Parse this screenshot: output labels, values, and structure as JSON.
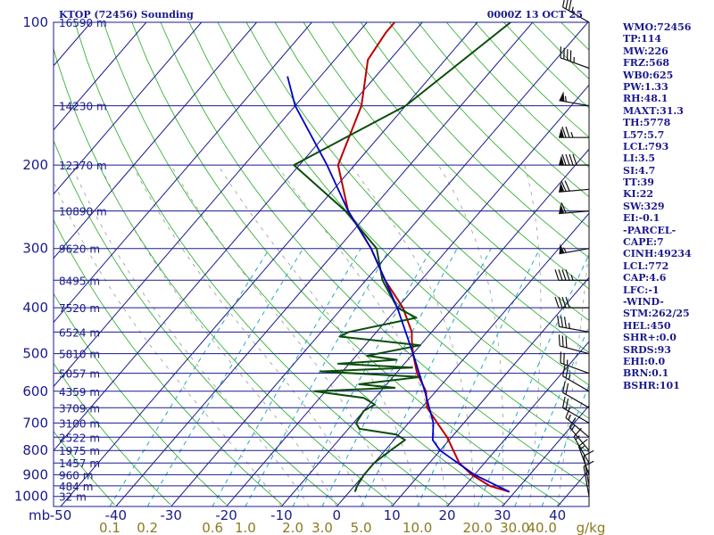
{
  "header": {
    "station": "KTOP (72456) Sounding",
    "time": "0000Z 13 OCT 25"
  },
  "colors": {
    "background": "#ffffff",
    "frame": "#1a1a8c",
    "isobar": "#1a1a8c",
    "isotherm": "#1a1a8c",
    "dry_adiabat": "#22aa22",
    "mixing_ratio": "#22aabb",
    "moist_adiabat": "#999999",
    "temperature": "#bb0000",
    "dewpoint": "#0b4d0b",
    "parcel": "#0000cc",
    "wind": "#111111",
    "label": "#1a1a8c",
    "mixing_label": "#8a7a20"
  },
  "icons": {
    "wind_barbs": "wind-barb-icon"
  },
  "chart_data": {
    "type": "line",
    "subtype": "skew-t log-p",
    "y_axis": {
      "label": "mb",
      "scale": "log",
      "range": [
        1050,
        100
      ],
      "ticks": [
        100,
        200,
        300,
        400,
        500,
        600,
        700,
        800,
        900,
        1000
      ]
    },
    "x_axis": {
      "range": [
        -50,
        45
      ],
      "ticks": [
        -50,
        -40,
        -30,
        -20,
        -10,
        0,
        10,
        20,
        30,
        40
      ]
    },
    "mixing_ratio": {
      "unit": "g/kg",
      "labels": [
        "0.1",
        "0.2",
        "0.6",
        "1.0",
        "2.0",
        "3.0",
        "5.0",
        "10.0",
        "20.0",
        "30.0",
        "40.0"
      ]
    },
    "height_labels": [
      {
        "p": 100,
        "text": "16590 m"
      },
      {
        "p": 150,
        "text": "14230 m"
      },
      {
        "p": 200,
        "text": "12370 m"
      },
      {
        "p": 250,
        "text": "10890 m"
      },
      {
        "p": 300,
        "text": "9620 m"
      },
      {
        "p": 350,
        "text": "8495 m"
      },
      {
        "p": 400,
        "text": "7520 m"
      },
      {
        "p": 450,
        "text": "6524 m"
      },
      {
        "p": 500,
        "text": "5810 m"
      },
      {
        "p": 550,
        "text": "5057 m"
      },
      {
        "p": 600,
        "text": "4359 m"
      },
      {
        "p": 650,
        "text": "3709 m"
      },
      {
        "p": 700,
        "text": "3100 m"
      },
      {
        "p": 750,
        "text": "2522 m"
      },
      {
        "p": 800,
        "text": "1975 m"
      },
      {
        "p": 850,
        "text": "1457 m"
      },
      {
        "p": 900,
        "text": "960 m"
      },
      {
        "p": 950,
        "text": "484 m"
      },
      {
        "p": 1000,
        "text": "32 m"
      }
    ],
    "series": [
      {
        "key": "temperature",
        "points": [
          [
            978,
            29
          ],
          [
            950,
            24.5
          ],
          [
            900,
            19.5
          ],
          [
            850,
            15.4
          ],
          [
            800,
            12.4
          ],
          [
            750,
            9.2
          ],
          [
            700,
            5.2
          ],
          [
            650,
            1.0
          ],
          [
            600,
            -1.8
          ],
          [
            550,
            -6.2
          ],
          [
            500,
            -10
          ],
          [
            470,
            -12.2
          ],
          [
            450,
            -13.6
          ],
          [
            400,
            -19
          ],
          [
            350,
            -26.5
          ],
          [
            300,
            -34
          ],
          [
            250,
            -44
          ],
          [
            200,
            -53
          ],
          [
            150,
            -58
          ],
          [
            120,
            -64
          ],
          [
            105,
            -65
          ],
          [
            100,
            -65
          ]
        ]
      },
      {
        "key": "dewpoint",
        "points": [
          [
            978,
            1
          ],
          [
            950,
            0.5
          ],
          [
            900,
            0
          ],
          [
            850,
            0
          ],
          [
            800,
            1
          ],
          [
            760,
            2
          ],
          [
            740,
            -0.5
          ],
          [
            720,
            -8
          ],
          [
            700,
            -9.5
          ],
          [
            660,
            -10
          ],
          [
            640,
            -9
          ],
          [
            620,
            -12
          ],
          [
            600,
            -22
          ],
          [
            590,
            -8
          ],
          [
            580,
            -15
          ],
          [
            560,
            -5
          ],
          [
            545,
            -24
          ],
          [
            535,
            -8
          ],
          [
            525,
            -22
          ],
          [
            515,
            -12
          ],
          [
            505,
            -18
          ],
          [
            480,
            -10
          ],
          [
            460,
            -26
          ],
          [
            450,
            -25
          ],
          [
            420,
            -15
          ],
          [
            400,
            -20
          ],
          [
            350,
            -27
          ],
          [
            300,
            -33
          ],
          [
            250,
            -44.5
          ],
          [
            200,
            -61
          ],
          [
            150,
            -50
          ],
          [
            100,
            -44
          ]
        ]
      },
      {
        "key": "parcel",
        "points": [
          [
            978,
            29
          ],
          [
            900,
            20
          ],
          [
            800,
            10
          ],
          [
            760,
            7
          ],
          [
            700,
            4.5
          ],
          [
            600,
            -2
          ],
          [
            500,
            -10
          ],
          [
            400,
            -20
          ],
          [
            300,
            -34
          ],
          [
            250,
            -44
          ],
          [
            200,
            -55
          ],
          [
            150,
            -70
          ],
          [
            130,
            -76
          ]
        ]
      }
    ],
    "wind": {
      "unit": "kt",
      "barbs": [
        {
          "p": 100,
          "dir": 300,
          "spd": 35
        },
        {
          "p": 125,
          "dir": 290,
          "spd": 45
        },
        {
          "p": 150,
          "dir": 280,
          "spd": 55
        },
        {
          "p": 175,
          "dir": 270,
          "spd": 75
        },
        {
          "p": 200,
          "dir": 270,
          "spd": 90
        },
        {
          "p": 225,
          "dir": 265,
          "spd": 70
        },
        {
          "p": 250,
          "dir": 265,
          "spd": 60
        },
        {
          "p": 300,
          "dir": 260,
          "spd": 55
        },
        {
          "p": 350,
          "dir": 270,
          "spd": 45
        },
        {
          "p": 400,
          "dir": 270,
          "spd": 40
        },
        {
          "p": 450,
          "dir": 280,
          "spd": 35
        },
        {
          "p": 500,
          "dir": 285,
          "spd": 30
        },
        {
          "p": 550,
          "dir": 290,
          "spd": 25
        },
        {
          "p": 600,
          "dir": 300,
          "spd": 25
        },
        {
          "p": 650,
          "dir": 300,
          "spd": 20
        },
        {
          "p": 700,
          "dir": 300,
          "spd": 20
        },
        {
          "p": 750,
          "dir": 310,
          "spd": 15
        },
        {
          "p": 800,
          "dir": 320,
          "spd": 15
        },
        {
          "p": 850,
          "dir": 330,
          "spd": 15
        },
        {
          "p": 900,
          "dir": 340,
          "spd": 15
        },
        {
          "p": 950,
          "dir": 350,
          "spd": 10
        },
        {
          "p": 1000,
          "dir": 350,
          "spd": 10
        }
      ]
    }
  },
  "indices": [
    "WMO:72456",
    "TP:114",
    "MW:226",
    "FRZ:568",
    "WB0:625",
    "PW:1.33",
    "RH:48.1",
    "MAXT:31.3",
    "TH:5778",
    "L57:5.7",
    "LCL:793",
    "LI:3.5",
    "SI:4.7",
    "TT:39",
    "KI:22",
    "SW:329",
    "EI:-0.1",
    "-PARCEL-",
    "CAPE:7",
    "CINH:49234",
    "LCL:772",
    "CAP:4.6",
    "LFC:-1",
    "-WIND-",
    "STM:262/25",
    "HEL:450",
    "SHR+:0.0",
    "SRDS:93",
    "EHI:0.0",
    "BRN:0.1",
    "BSHR:101"
  ]
}
